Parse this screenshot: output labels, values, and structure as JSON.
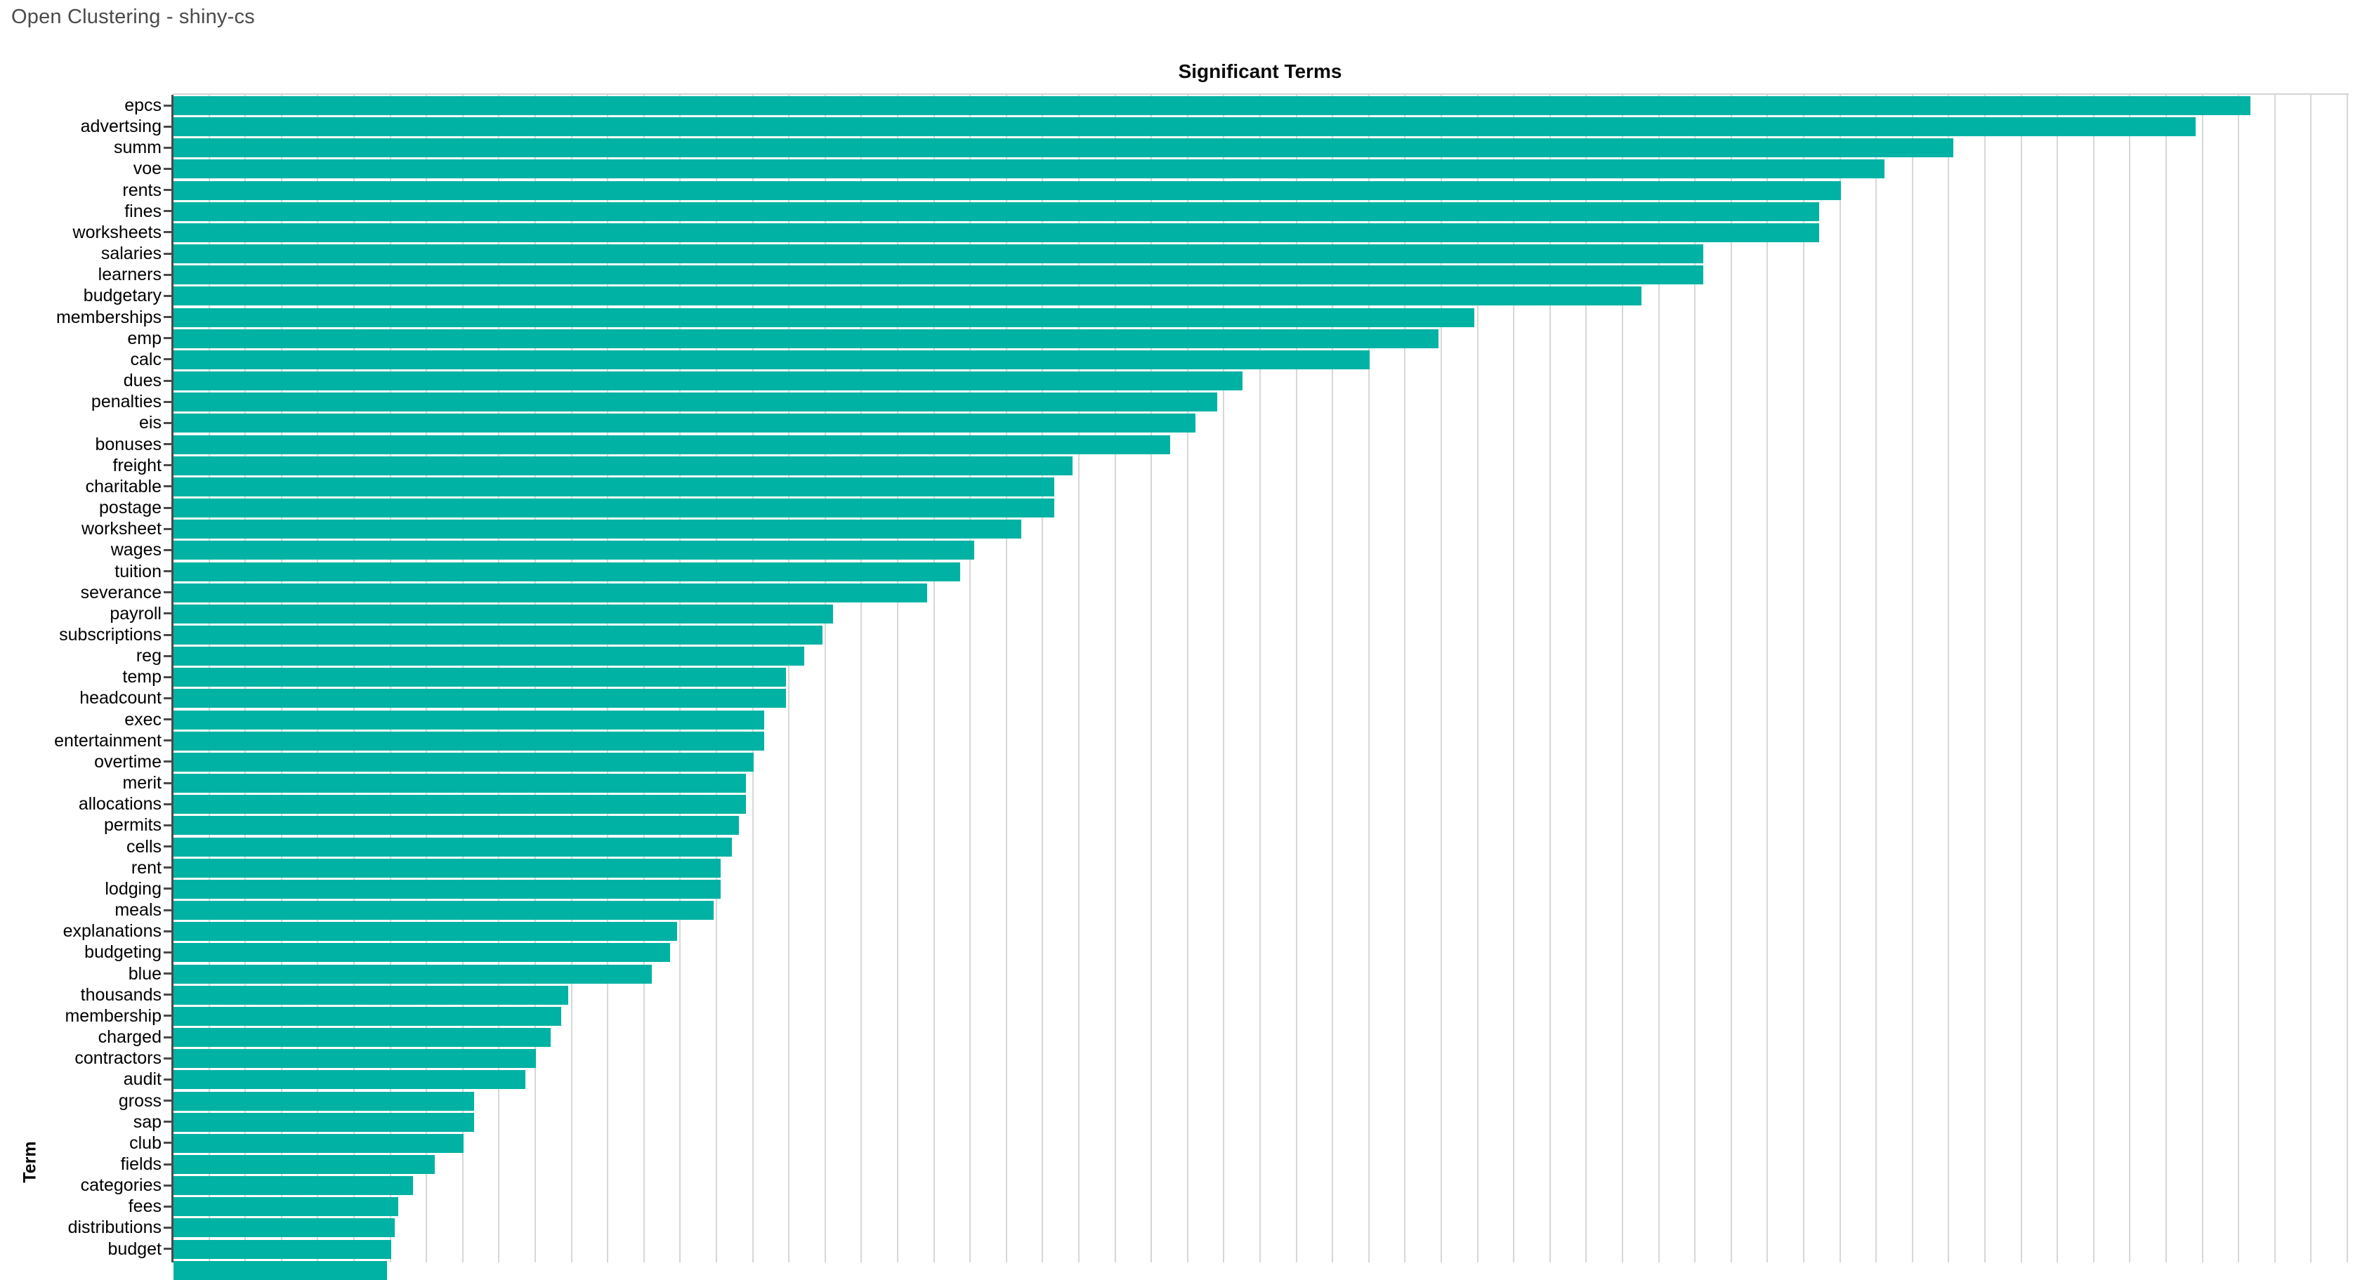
{
  "page": {
    "header": "Open Clustering - shiny-cs"
  },
  "chart_data": {
    "type": "bar",
    "orientation": "horizontal",
    "title": "Significant Terms",
    "xlabel": "",
    "ylabel": "Term",
    "x_tick_labels_visible": false,
    "xlim": [
      0,
      60
    ],
    "grid": true,
    "grid_spacing": 1,
    "legend": "none",
    "categories": [
      "epcs",
      "advertsing",
      "summ",
      "voe",
      "rents",
      "fines",
      "worksheets",
      "salaries",
      "learners",
      "budgetary",
      "memberships",
      "emp",
      "calc",
      "dues",
      "penalties",
      "eis",
      "bonuses",
      "freight",
      "charitable",
      "postage",
      "worksheet",
      "wages",
      "tuition",
      "severance",
      "payroll",
      "subscriptions",
      "reg",
      "temp",
      "headcount",
      "exec",
      "entertainment",
      "overtime",
      "merit",
      "allocations",
      "permits",
      "cells",
      "rent",
      "lodging",
      "meals",
      "explanations",
      "budgeting",
      "blue",
      "thousands",
      "membership",
      "charged",
      "contractors",
      "audit",
      "gross",
      "sap",
      "club",
      "fields",
      "categories",
      "fees",
      "distributions",
      "budget"
    ],
    "values": [
      57.3,
      55.8,
      49.1,
      47.2,
      46.0,
      45.4,
      45.4,
      42.2,
      42.2,
      40.5,
      35.9,
      34.9,
      33.0,
      29.5,
      28.8,
      28.2,
      27.5,
      24.8,
      24.3,
      24.3,
      23.4,
      22.1,
      21.7,
      20.8,
      18.2,
      17.9,
      17.4,
      16.9,
      16.9,
      16.3,
      16.3,
      16.0,
      15.8,
      15.8,
      15.6,
      15.4,
      15.1,
      15.1,
      14.9,
      13.9,
      13.7,
      13.2,
      10.9,
      10.7,
      10.4,
      10.0,
      9.7,
      8.3,
      8.3,
      8.0,
      7.2,
      6.6,
      6.2,
      6.1,
      6.0
    ],
    "clipped_partial_row_value": 5.9,
    "colors": {
      "bar": "#00b2a3",
      "grid": "#d7d7d7",
      "axis": "#4a4a4a",
      "header_text": "#4a4a4a",
      "label_text": "#000000"
    }
  }
}
